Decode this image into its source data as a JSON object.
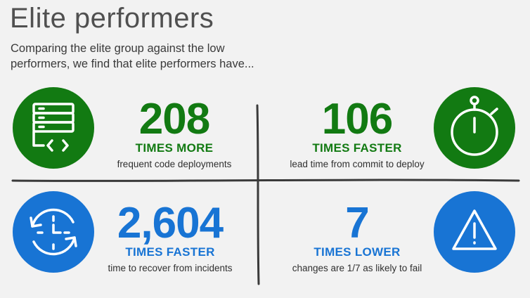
{
  "header": {
    "title": "Elite performers",
    "subtitle": "Comparing the elite group against the low performers, we find that elite performers have..."
  },
  "colors": {
    "green": "#127a12",
    "blue": "#1874d4",
    "divider": "#3a3a3a"
  },
  "stats": [
    {
      "number": "208",
      "unit": "TIMES MORE",
      "description": "frequent code deployments",
      "icon": "server-code-icon"
    },
    {
      "number": "106",
      "unit": "TIMES FASTER",
      "description": "lead time from commit to deploy",
      "icon": "stopwatch-icon"
    },
    {
      "number": "2,604",
      "unit": "TIMES FASTER",
      "description": "time to recover from incidents",
      "icon": "clock-refresh-icon"
    },
    {
      "number": "7",
      "unit": "TIMES LOWER",
      "description": "changes are 1/7 as likely to fail",
      "icon": "warning-triangle-icon"
    }
  ]
}
